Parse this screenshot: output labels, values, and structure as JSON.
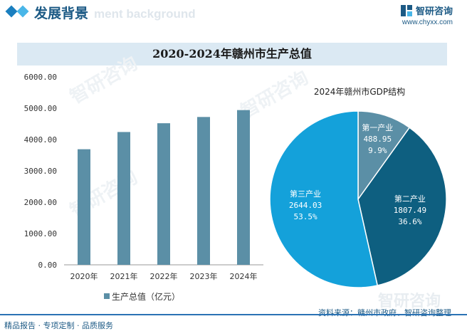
{
  "header": {
    "title": "发展背景",
    "ghost_text": "ment background"
  },
  "brand": {
    "name": "智研咨询",
    "url": "www.chyxx.com"
  },
  "chart_title": "2020-2024年赣州市生产总值",
  "watermark": "智研咨询",
  "chart_data": [
    {
      "type": "bar",
      "categories": [
        "2020年",
        "2021年",
        "2022年",
        "2023年",
        "2024年"
      ],
      "series": [
        {
          "name": "生产总值（亿元）",
          "values": [
            3690,
            4240,
            4520,
            4720,
            4940
          ],
          "color": "#5b8fa6"
        }
      ],
      "yticks": [
        "0.00",
        "1000.00",
        "2000.00",
        "3000.00",
        "4000.00",
        "5000.00",
        "6000.00"
      ],
      "ylim": [
        0,
        6000
      ]
    },
    {
      "type": "pie",
      "title": "2024年赣州市GDP结构",
      "slices": [
        {
          "label": "第一产业",
          "value": 488.95,
          "value_text": "488.95",
          "percent": "9.9%",
          "color": "#5b8fa6"
        },
        {
          "label": "第二产业",
          "value": 1807.49,
          "value_text": "1807.49",
          "percent": "36.6%",
          "color": "#0e5f80"
        },
        {
          "label": "第三产业",
          "value": 2644.03,
          "value_text": "2644.03",
          "percent": "53.5%",
          "color": "#14a1da"
        }
      ]
    }
  ],
  "footer": {
    "left_text": "精品报告 · 专项定制 · 品质服务",
    "source": "资料来源：赣州市政府、智研咨询整理"
  }
}
